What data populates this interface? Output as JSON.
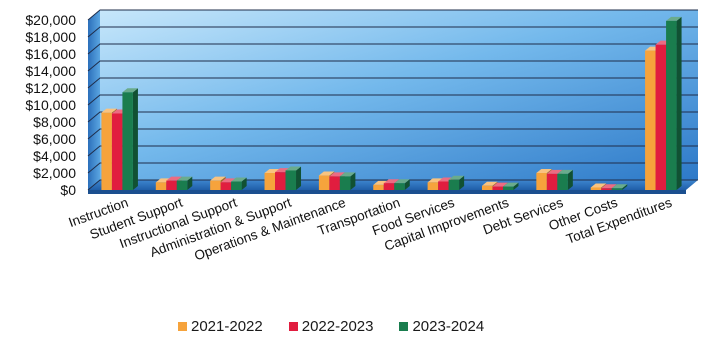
{
  "chart_data": {
    "type": "bar",
    "style": "3d-clustered-column",
    "title": "",
    "xlabel": "",
    "ylabel": "",
    "ylim": [
      0,
      20000
    ],
    "y_ticks": [
      "$0",
      "$2,000",
      "$4,000",
      "$6,000",
      "$8,000",
      "$10,000",
      "$12,000",
      "$14,000",
      "$16,000",
      "$18,000",
      "$20,000"
    ],
    "y_tick_values": [
      0,
      2000,
      4000,
      6000,
      8000,
      10000,
      12000,
      14000,
      16000,
      18000,
      20000
    ],
    "grid": true,
    "legend_position": "bottom",
    "categories": [
      "Instruction",
      "Student Support",
      "Instructional Support",
      "Administration & Support",
      "Operations & Maintenance",
      "Transportation",
      "Food Services",
      "Capital Improvements",
      "Debt Services",
      "Other Costs",
      "Total Expenditures"
    ],
    "series": [
      {
        "name": "2021-2022",
        "color": "#f6a33c",
        "values": [
          9100,
          900,
          1100,
          2000,
          1700,
          600,
          900,
          500,
          2000,
          300,
          16400
        ]
      },
      {
        "name": "2022-2023",
        "color": "#e11d3f",
        "values": [
          9000,
          1100,
          900,
          2100,
          1600,
          800,
          1000,
          400,
          1900,
          200,
          17100
        ]
      },
      {
        "name": "2023-2024",
        "color": "#1a7d4e",
        "values": [
          11500,
          1100,
          1000,
          2300,
          1600,
          800,
          1200,
          400,
          1900,
          200,
          19900
        ]
      }
    ]
  }
}
